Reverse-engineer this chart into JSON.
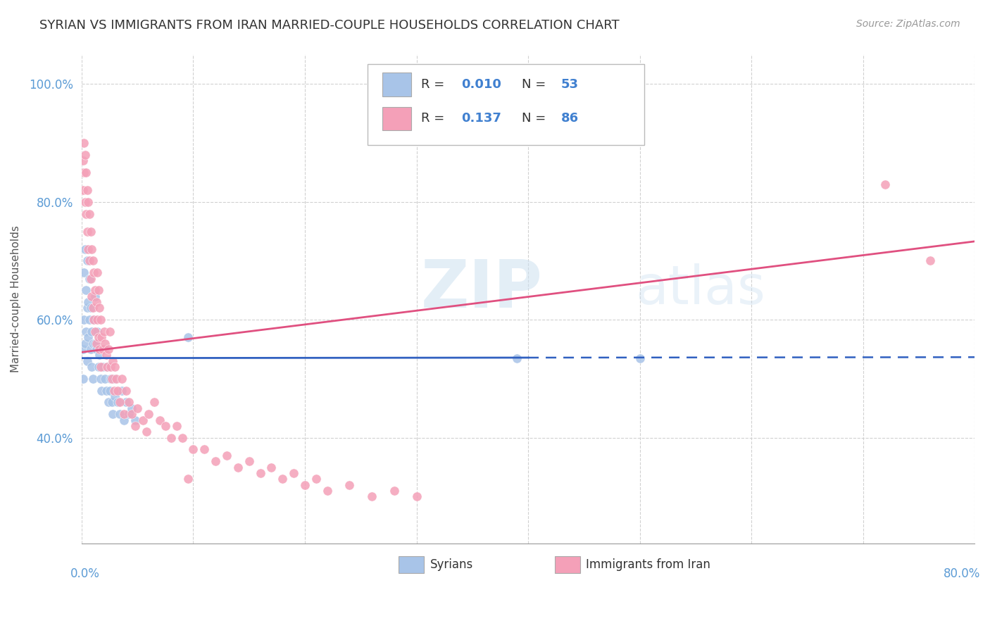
{
  "title": "SYRIAN VS IMMIGRANTS FROM IRAN MARRIED-COUPLE HOUSEHOLDS CORRELATION CHART",
  "source": "Source: ZipAtlas.com",
  "ylabel": "Married-couple Households",
  "xlim": [
    0.0,
    0.8
  ],
  "ylim": [
    0.22,
    1.05
  ],
  "y_tick_vals": [
    0.4,
    0.6,
    0.8,
    1.0
  ],
  "y_tick_labels": [
    "40.0%",
    "60.0%",
    "80.0%",
    "100.0%"
  ],
  "x_gridlines": [
    0.0,
    0.1,
    0.2,
    0.3,
    0.4,
    0.5,
    0.6,
    0.7,
    0.8
  ],
  "syrians": {
    "color": "#a8c4e8",
    "line_color": "#3060c0",
    "line_solid_end": 0.4,
    "R": 0.01,
    "N": 53,
    "x": [
      0.001,
      0.001,
      0.002,
      0.002,
      0.003,
      0.003,
      0.004,
      0.004,
      0.005,
      0.005,
      0.005,
      0.006,
      0.006,
      0.007,
      0.007,
      0.008,
      0.008,
      0.009,
      0.009,
      0.01,
      0.01,
      0.011,
      0.012,
      0.012,
      0.013,
      0.014,
      0.015,
      0.016,
      0.017,
      0.018,
      0.019,
      0.02,
      0.021,
      0.022,
      0.023,
      0.024,
      0.025,
      0.026,
      0.027,
      0.028,
      0.029,
      0.03,
      0.032,
      0.034,
      0.036,
      0.038,
      0.04,
      0.042,
      0.045,
      0.048,
      0.095,
      0.39,
      0.5
    ],
    "y": [
      0.55,
      0.5,
      0.68,
      0.6,
      0.72,
      0.56,
      0.65,
      0.58,
      0.7,
      0.62,
      0.53,
      0.63,
      0.57,
      0.67,
      0.6,
      0.55,
      0.62,
      0.58,
      0.52,
      0.56,
      0.5,
      0.6,
      0.64,
      0.56,
      0.55,
      0.58,
      0.52,
      0.54,
      0.5,
      0.48,
      0.52,
      0.55,
      0.5,
      0.48,
      0.52,
      0.46,
      0.48,
      0.5,
      0.46,
      0.44,
      0.5,
      0.47,
      0.46,
      0.44,
      0.48,
      0.43,
      0.46,
      0.44,
      0.45,
      0.43,
      0.57,
      0.535,
      0.535
    ]
  },
  "iranians": {
    "color": "#f4a0b8",
    "line_color": "#e05080",
    "R": 0.137,
    "N": 86,
    "x": [
      0.001,
      0.001,
      0.002,
      0.002,
      0.003,
      0.003,
      0.004,
      0.004,
      0.005,
      0.005,
      0.006,
      0.006,
      0.007,
      0.007,
      0.008,
      0.008,
      0.009,
      0.009,
      0.01,
      0.01,
      0.011,
      0.011,
      0.012,
      0.012,
      0.013,
      0.013,
      0.014,
      0.014,
      0.015,
      0.015,
      0.016,
      0.016,
      0.017,
      0.017,
      0.018,
      0.019,
      0.02,
      0.021,
      0.022,
      0.023,
      0.024,
      0.025,
      0.026,
      0.027,
      0.028,
      0.029,
      0.03,
      0.031,
      0.032,
      0.034,
      0.036,
      0.038,
      0.04,
      0.042,
      0.045,
      0.048,
      0.05,
      0.055,
      0.058,
      0.06,
      0.065,
      0.07,
      0.075,
      0.08,
      0.085,
      0.09,
      0.1,
      0.11,
      0.12,
      0.13,
      0.14,
      0.15,
      0.16,
      0.17,
      0.18,
      0.19,
      0.2,
      0.21,
      0.22,
      0.24,
      0.26,
      0.28,
      0.3,
      0.095,
      0.72,
      0.76
    ],
    "y": [
      0.87,
      0.82,
      0.9,
      0.85,
      0.88,
      0.8,
      0.85,
      0.78,
      0.82,
      0.75,
      0.8,
      0.72,
      0.78,
      0.7,
      0.75,
      0.67,
      0.72,
      0.64,
      0.7,
      0.62,
      0.68,
      0.6,
      0.65,
      0.58,
      0.63,
      0.56,
      0.6,
      0.68,
      0.65,
      0.57,
      0.62,
      0.55,
      0.6,
      0.52,
      0.57,
      0.55,
      0.58,
      0.56,
      0.54,
      0.52,
      0.55,
      0.58,
      0.52,
      0.5,
      0.53,
      0.48,
      0.52,
      0.5,
      0.48,
      0.46,
      0.5,
      0.44,
      0.48,
      0.46,
      0.44,
      0.42,
      0.45,
      0.43,
      0.41,
      0.44,
      0.46,
      0.43,
      0.42,
      0.4,
      0.42,
      0.4,
      0.38,
      0.38,
      0.36,
      0.37,
      0.35,
      0.36,
      0.34,
      0.35,
      0.33,
      0.34,
      0.32,
      0.33,
      0.31,
      0.32,
      0.3,
      0.31,
      0.3,
      0.33,
      0.83,
      0.7
    ]
  },
  "background_color": "#ffffff",
  "grid_color": "#cccccc",
  "title_fontsize": 13,
  "tick_label_color": "#5b9bd5",
  "watermark_color": "#daeaf8",
  "watermark_text": "ZIP atlas"
}
